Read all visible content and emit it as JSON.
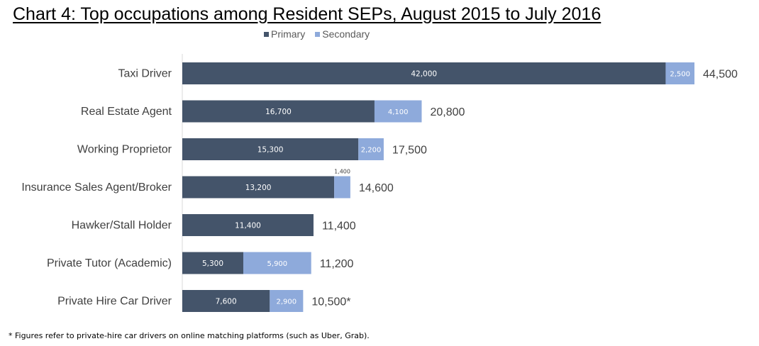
{
  "chart_data": {
    "type": "bar",
    "orientation": "horizontal",
    "stacked": true,
    "title": "Chart 4: Top occupations among Resident SEPs, August 2015 to July 2016",
    "categories": [
      "Taxi Driver",
      "Real Estate Agent",
      "Working Proprietor",
      "Insurance Sales Agent/Broker",
      "Hawker/Stall Holder",
      "Private Tutor (Academic)",
      "Private Hire Car Driver"
    ],
    "series": [
      {
        "name": "Primary",
        "color": "#44546a",
        "values": [
          42000,
          16700,
          15300,
          13200,
          11400,
          5300,
          7600
        ],
        "labels": [
          "42,000",
          "16,700",
          "15,300",
          "13,200",
          "11,400",
          "5,300",
          "7,600"
        ]
      },
      {
        "name": "Secondary",
        "color": "#8eaadb",
        "values": [
          2500,
          4100,
          2200,
          1400,
          0,
          5900,
          2900
        ],
        "labels": [
          "2,500",
          "4,100",
          "2,200",
          "1,400",
          "",
          "5,900",
          "2,900"
        ]
      }
    ],
    "totals": [
      44500,
      20800,
      17500,
      14600,
      11400,
      11200,
      10500
    ],
    "total_labels": [
      "44,500",
      "20,800",
      "17,500",
      "14,600",
      "11,400",
      "11,200",
      "10,500*"
    ],
    "xlim": [
      0,
      44500
    ],
    "grid": false,
    "legend_position": "top"
  },
  "legend": {
    "primary": "Primary",
    "secondary": "Secondary"
  },
  "footnote": "* Figures refer to private-hire car drivers on online matching platforms (such as Uber, Grab)."
}
